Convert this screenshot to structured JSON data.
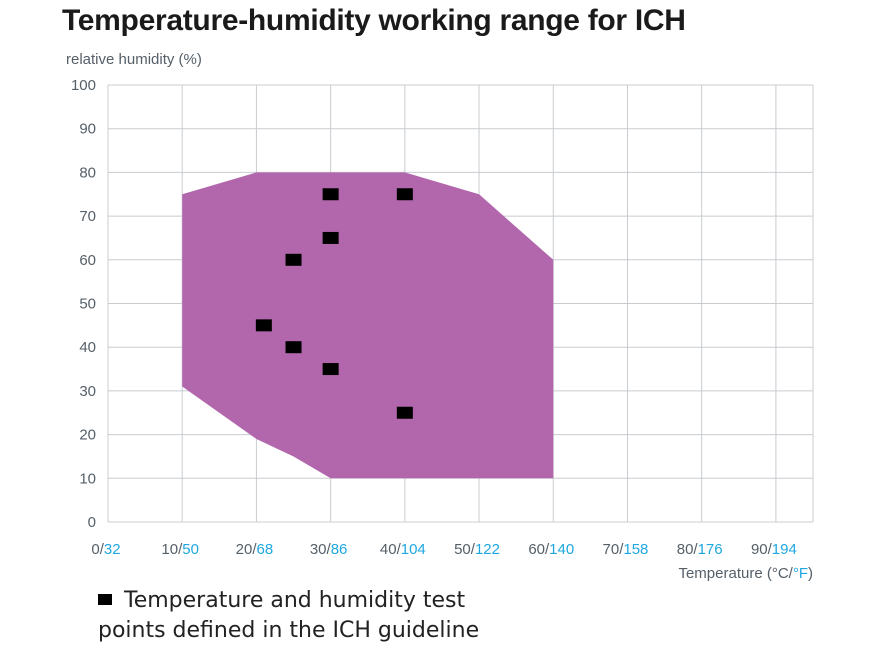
{
  "chart_data": {
    "type": "scatter",
    "title": "Temperature-humidity working range for ICH",
    "ylabel": "relative humidity (%)",
    "xlabel": "Temperature (°C/°F)",
    "xlabel_parts": {
      "prefix": "Temperature (°C/",
      "f_unit": "°F",
      "suffix": ")"
    },
    "xlim": [
      0,
      95
    ],
    "ylim": [
      0,
      100
    ],
    "y_ticks": [
      "0",
      "10",
      "20",
      "30",
      "40",
      "50",
      "60",
      "70",
      "80",
      "90",
      "100"
    ],
    "x_ticks": [
      {
        "c": "0",
        "f": "32"
      },
      {
        "c": "10",
        "f": "50"
      },
      {
        "c": "20",
        "f": "68"
      },
      {
        "c": "30",
        "f": "86"
      },
      {
        "c": "40",
        "f": "104"
      },
      {
        "c": "50",
        "f": "122"
      },
      {
        "c": "60",
        "f": "140"
      },
      {
        "c": "70",
        "f": "158"
      },
      {
        "c": "80",
        "f": "176"
      },
      {
        "c": "90",
        "f": "194"
      }
    ],
    "working_range": {
      "color": "#b267ad",
      "polygon": [
        [
          10,
          75
        ],
        [
          20,
          80
        ],
        [
          40,
          80
        ],
        [
          50,
          75
        ],
        [
          60,
          60
        ],
        [
          60,
          10
        ],
        [
          30,
          10
        ],
        [
          25,
          15
        ],
        [
          20,
          19
        ],
        [
          10,
          31
        ]
      ]
    },
    "series": [
      {
        "name": "Temperature and humidity test points defined in the ICH guideline",
        "color": "#000000",
        "marker": "square",
        "points": [
          [
            30,
            75
          ],
          [
            40,
            75
          ],
          [
            30,
            65
          ],
          [
            25,
            60
          ],
          [
            21,
            45
          ],
          [
            25,
            40
          ],
          [
            30,
            35
          ],
          [
            40,
            25
          ]
        ]
      }
    ],
    "grid": true,
    "legend_placement": "bottom-left"
  },
  "legend": {
    "line1": "Temperature and humidity test",
    "line2": "points defined in the ICH guideline"
  },
  "colors": {
    "fill": "#b267ad",
    "grid": "#c8ccd0",
    "tick_text": "#555f68",
    "fahrenheit": "#1ea7e0"
  }
}
